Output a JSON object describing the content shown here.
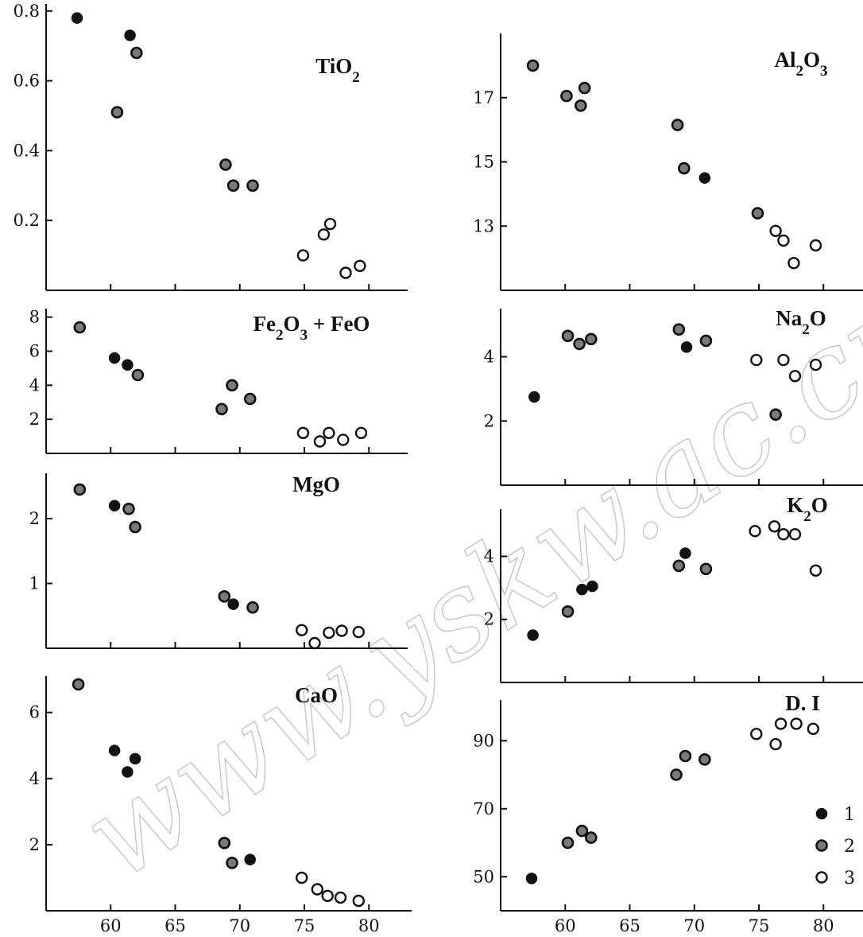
{
  "legend": [
    {
      "label": "1",
      "marker": "solid"
    },
    {
      "label": "2",
      "marker": "dotted"
    },
    {
      "label": "3",
      "marker": "open"
    }
  ],
  "watermark": "www.yskw.ac.cn",
  "colors": {
    "ink": "#111111",
    "dotted_fill": "#7a7a7a",
    "watermark": "#c8c8c8"
  },
  "chart_data": [
    {
      "type": "scatter",
      "title": "TiO₂",
      "x_ticks": [
        60,
        65,
        70,
        75,
        80
      ],
      "xlim": [
        55,
        83
      ],
      "y_ticks": [
        0.2,
        0.4,
        0.6,
        0.8
      ],
      "y_tick_labels": [
        "0.2",
        "0.4",
        "0.6",
        "0.8"
      ],
      "ylim": [
        0,
        0.82
      ],
      "points": [
        {
          "x": 57.4,
          "y": 0.78,
          "g": 1
        },
        {
          "x": 61.5,
          "y": 0.73,
          "g": 1
        },
        {
          "x": 62.0,
          "y": 0.68,
          "g": 2
        },
        {
          "x": 60.5,
          "y": 0.51,
          "g": 2
        },
        {
          "x": 68.9,
          "y": 0.36,
          "g": 2
        },
        {
          "x": 69.5,
          "y": 0.3,
          "g": 2
        },
        {
          "x": 71.0,
          "y": 0.3,
          "g": 2
        },
        {
          "x": 74.9,
          "y": 0.1,
          "g": 3
        },
        {
          "x": 76.5,
          "y": 0.16,
          "g": 3
        },
        {
          "x": 77.0,
          "y": 0.19,
          "g": 3
        },
        {
          "x": 78.2,
          "y": 0.05,
          "g": 3
        },
        {
          "x": 79.3,
          "y": 0.07,
          "g": 3
        }
      ]
    },
    {
      "type": "scatter",
      "title": "Fe₂O₃ + FeO",
      "x_ticks": [
        60,
        65,
        70,
        75,
        80
      ],
      "xlim": [
        55,
        83
      ],
      "y_ticks": [
        2,
        4,
        6,
        8
      ],
      "y_tick_labels": [
        "2",
        "4",
        "6",
        "8"
      ],
      "ylim": [
        0,
        8.5
      ],
      "points": [
        {
          "x": 57.6,
          "y": 7.4,
          "g": 2
        },
        {
          "x": 60.3,
          "y": 5.6,
          "g": 1
        },
        {
          "x": 61.3,
          "y": 5.2,
          "g": 1
        },
        {
          "x": 62.1,
          "y": 4.6,
          "g": 2
        },
        {
          "x": 68.6,
          "y": 2.6,
          "g": 2
        },
        {
          "x": 69.4,
          "y": 4.0,
          "g": 2
        },
        {
          "x": 70.8,
          "y": 3.2,
          "g": 2
        },
        {
          "x": 74.9,
          "y": 1.2,
          "g": 3
        },
        {
          "x": 76.2,
          "y": 0.7,
          "g": 3
        },
        {
          "x": 76.9,
          "y": 1.2,
          "g": 3
        },
        {
          "x": 78.0,
          "y": 0.8,
          "g": 3
        },
        {
          "x": 79.4,
          "y": 1.2,
          "g": 3
        }
      ]
    },
    {
      "type": "scatter",
      "title": "MgO",
      "x_ticks": [
        60,
        65,
        70,
        75,
        80
      ],
      "xlim": [
        55,
        83
      ],
      "y_ticks": [
        1,
        2
      ],
      "y_tick_labels": [
        "1",
        "2"
      ],
      "ylim": [
        0,
        2.7
      ],
      "points": [
        {
          "x": 57.6,
          "y": 2.45,
          "g": 2
        },
        {
          "x": 60.3,
          "y": 2.2,
          "g": 1
        },
        {
          "x": 61.4,
          "y": 2.15,
          "g": 2
        },
        {
          "x": 61.9,
          "y": 1.87,
          "g": 2
        },
        {
          "x": 68.8,
          "y": 0.8,
          "g": 2
        },
        {
          "x": 69.5,
          "y": 0.68,
          "g": 1
        },
        {
          "x": 71.0,
          "y": 0.63,
          "g": 2
        },
        {
          "x": 74.8,
          "y": 0.28,
          "g": 3
        },
        {
          "x": 75.8,
          "y": 0.08,
          "g": 3
        },
        {
          "x": 76.9,
          "y": 0.24,
          "g": 3
        },
        {
          "x": 77.9,
          "y": 0.27,
          "g": 3
        },
        {
          "x": 79.2,
          "y": 0.25,
          "g": 3
        }
      ]
    },
    {
      "type": "scatter",
      "title": "CaO",
      "x_ticks": [
        60,
        65,
        70,
        75,
        80
      ],
      "xlim": [
        55,
        83
      ],
      "y_ticks": [
        2,
        4,
        6
      ],
      "y_tick_labels": [
        "2",
        "4",
        "6"
      ],
      "ylim": [
        0,
        7.1
      ],
      "points": [
        {
          "x": 57.5,
          "y": 6.85,
          "g": 2
        },
        {
          "x": 60.3,
          "y": 4.85,
          "g": 1
        },
        {
          "x": 61.3,
          "y": 4.2,
          "g": 1
        },
        {
          "x": 61.9,
          "y": 4.6,
          "g": 1
        },
        {
          "x": 68.8,
          "y": 2.05,
          "g": 2
        },
        {
          "x": 69.4,
          "y": 1.45,
          "g": 2
        },
        {
          "x": 70.8,
          "y": 1.55,
          "g": 1
        },
        {
          "x": 74.8,
          "y": 1.0,
          "g": 3
        },
        {
          "x": 76.0,
          "y": 0.65,
          "g": 3
        },
        {
          "x": 76.8,
          "y": 0.45,
          "g": 3
        },
        {
          "x": 77.8,
          "y": 0.4,
          "g": 3
        },
        {
          "x": 79.2,
          "y": 0.3,
          "g": 3
        }
      ]
    },
    {
      "type": "scatter",
      "title": "Al₂O₃",
      "x_ticks": [
        60,
        65,
        70,
        75,
        80
      ],
      "xlim": [
        55,
        83
      ],
      "y_ticks": [
        13,
        15,
        17
      ],
      "y_tick_labels": [
        "13",
        "15",
        "17"
      ],
      "ylim": [
        11,
        19
      ],
      "points": [
        {
          "x": 57.5,
          "y": 18.0,
          "g": 2
        },
        {
          "x": 60.1,
          "y": 17.05,
          "g": 2
        },
        {
          "x": 61.2,
          "y": 16.75,
          "g": 2
        },
        {
          "x": 61.5,
          "y": 17.3,
          "g": 2
        },
        {
          "x": 68.7,
          "y": 16.15,
          "g": 2
        },
        {
          "x": 69.2,
          "y": 14.8,
          "g": 2
        },
        {
          "x": 70.8,
          "y": 14.5,
          "g": 1
        },
        {
          "x": 74.9,
          "y": 13.4,
          "g": 2
        },
        {
          "x": 76.3,
          "y": 12.85,
          "g": 3
        },
        {
          "x": 76.9,
          "y": 12.55,
          "g": 3
        },
        {
          "x": 77.7,
          "y": 11.85,
          "g": 3
        },
        {
          "x": 79.4,
          "y": 12.4,
          "g": 3
        }
      ]
    },
    {
      "type": "scatter",
      "title": "Na₂O",
      "x_ticks": [
        60,
        65,
        70,
        75,
        80
      ],
      "xlim": [
        55,
        83
      ],
      "y_ticks": [
        2,
        4
      ],
      "y_tick_labels": [
        "2",
        "4"
      ],
      "ylim": [
        0,
        5.5
      ],
      "points": [
        {
          "x": 57.6,
          "y": 2.75,
          "g": 1
        },
        {
          "x": 60.2,
          "y": 4.65,
          "g": 2
        },
        {
          "x": 61.1,
          "y": 4.4,
          "g": 2
        },
        {
          "x": 62.0,
          "y": 4.55,
          "g": 2
        },
        {
          "x": 68.8,
          "y": 4.85,
          "g": 2
        },
        {
          "x": 69.4,
          "y": 4.3,
          "g": 1
        },
        {
          "x": 70.9,
          "y": 4.5,
          "g": 2
        },
        {
          "x": 74.8,
          "y": 3.9,
          "g": 3
        },
        {
          "x": 76.3,
          "y": 2.2,
          "g": 2
        },
        {
          "x": 76.9,
          "y": 3.9,
          "g": 3
        },
        {
          "x": 77.8,
          "y": 3.4,
          "g": 3
        },
        {
          "x": 79.4,
          "y": 3.75,
          "g": 3
        }
      ]
    },
    {
      "type": "scatter",
      "title": "K₂O",
      "x_ticks": [
        60,
        65,
        70,
        75,
        80
      ],
      "xlim": [
        55,
        83
      ],
      "y_ticks": [
        2,
        4
      ],
      "y_tick_labels": [
        "2",
        "4"
      ],
      "ylim": [
        0,
        5.5
      ],
      "points": [
        {
          "x": 57.5,
          "y": 1.5,
          "g": 1
        },
        {
          "x": 60.2,
          "y": 2.25,
          "g": 2
        },
        {
          "x": 61.3,
          "y": 2.95,
          "g": 1
        },
        {
          "x": 62.1,
          "y": 3.05,
          "g": 1
        },
        {
          "x": 68.8,
          "y": 3.7,
          "g": 2
        },
        {
          "x": 69.3,
          "y": 4.1,
          "g": 1
        },
        {
          "x": 70.9,
          "y": 3.6,
          "g": 2
        },
        {
          "x": 74.7,
          "y": 4.8,
          "g": 3
        },
        {
          "x": 76.2,
          "y": 4.95,
          "g": 3
        },
        {
          "x": 76.9,
          "y": 4.7,
          "g": 3
        },
        {
          "x": 77.8,
          "y": 4.7,
          "g": 3
        },
        {
          "x": 79.4,
          "y": 3.55,
          "g": 3
        }
      ]
    },
    {
      "type": "scatter",
      "title": "D. I",
      "x_ticks": [
        60,
        65,
        70,
        75,
        80
      ],
      "xlim": [
        55,
        83
      ],
      "y_ticks": [
        50,
        70,
        90
      ],
      "y_tick_labels": [
        "50",
        "70",
        "90"
      ],
      "ylim": [
        40,
        102
      ],
      "points": [
        {
          "x": 57.4,
          "y": 49.5,
          "g": 1
        },
        {
          "x": 60.2,
          "y": 60.0,
          "g": 2
        },
        {
          "x": 61.3,
          "y": 63.5,
          "g": 2
        },
        {
          "x": 62.0,
          "y": 61.5,
          "g": 2
        },
        {
          "x": 68.6,
          "y": 80.0,
          "g": 2
        },
        {
          "x": 69.3,
          "y": 85.5,
          "g": 2
        },
        {
          "x": 70.8,
          "y": 84.5,
          "g": 2
        },
        {
          "x": 74.8,
          "y": 92.0,
          "g": 3
        },
        {
          "x": 76.3,
          "y": 89.0,
          "g": 3
        },
        {
          "x": 76.7,
          "y": 95.0,
          "g": 3
        },
        {
          "x": 77.9,
          "y": 95.0,
          "g": 3
        },
        {
          "x": 79.2,
          "y": 93.5,
          "g": 3
        }
      ]
    }
  ]
}
